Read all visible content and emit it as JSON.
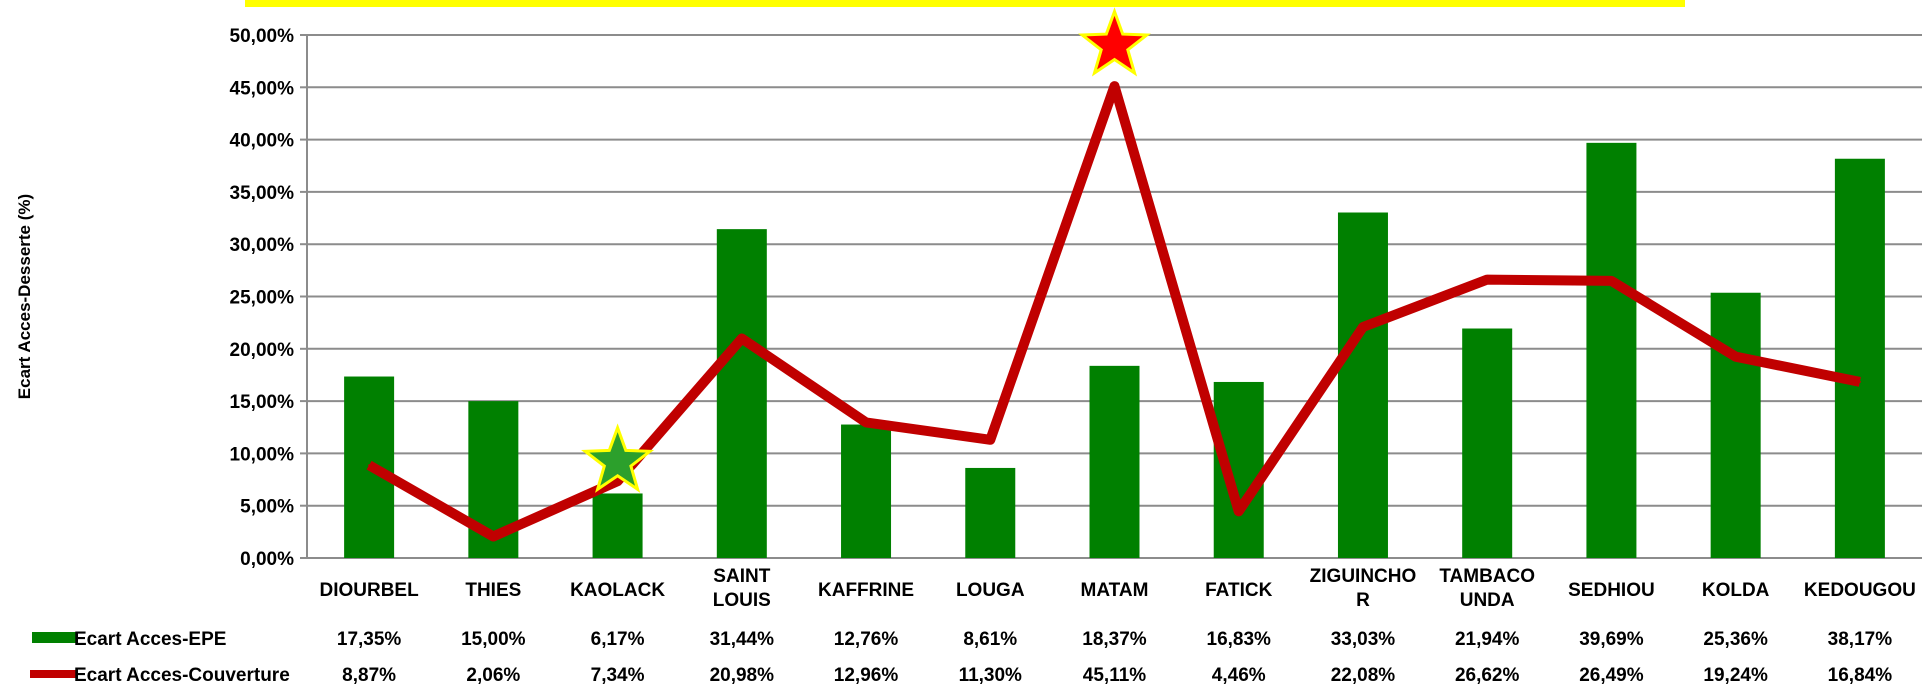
{
  "chart_data": {
    "type": "bar",
    "ylabel": "Ecart Acces-Desserte (%)",
    "ylim": [
      0,
      50
    ],
    "yticks": [
      "0,00%",
      "5,00%",
      "10,00%",
      "15,00%",
      "20,00%",
      "25,00%",
      "30,00%",
      "35,00%",
      "40,00%",
      "45,00%",
      "50,00%"
    ],
    "grid": true,
    "legend_position": "bottom table",
    "categories": [
      [
        "DIOURBEL"
      ],
      [
        "THIES"
      ],
      [
        "KAOLACK"
      ],
      [
        "SAINT",
        "LOUIS"
      ],
      [
        "KAFFRINE"
      ],
      [
        "LOUGA"
      ],
      [
        "MATAM"
      ],
      [
        "FATICK"
      ],
      [
        "ZIGUINCHO",
        "R"
      ],
      [
        "TAMBACO",
        "UNDA"
      ],
      [
        "SEDHIOU"
      ],
      [
        "KOLDA"
      ],
      [
        "KEDOUGOU"
      ]
    ],
    "series": [
      {
        "name": "Ecart Acces-EPE",
        "kind": "bar",
        "color": "#008000",
        "values": [
          17.35,
          15.0,
          6.17,
          31.44,
          12.76,
          8.61,
          18.37,
          16.83,
          33.03,
          21.94,
          39.69,
          25.36,
          38.17
        ],
        "labels": [
          "17,35%",
          "15,00%",
          "6,17%",
          "31,44%",
          "12,76%",
          "8,61%",
          "18,37%",
          "16,83%",
          "33,03%",
          "21,94%",
          "39,69%",
          "25,36%",
          "38,17%"
        ]
      },
      {
        "name": "Ecart Acces-Couverture",
        "kind": "line",
        "color": "#c00000",
        "values": [
          8.87,
          2.06,
          7.34,
          20.98,
          12.96,
          11.3,
          45.11,
          4.46,
          22.08,
          26.62,
          26.49,
          19.24,
          16.84
        ],
        "labels": [
          "8,87%",
          "2,06%",
          "7,34%",
          "20,98%",
          "12,96%",
          "11,30%",
          "45,11%",
          "4,46%",
          "22,08%",
          "26,62%",
          "26,49%",
          "19,24%",
          "16,84%"
        ]
      }
    ],
    "annotations": [
      {
        "shape": "star",
        "fill": "#2ca02c",
        "stroke": "#ffff00",
        "category_index": 2,
        "y": 9.2
      },
      {
        "shape": "star",
        "fill": "#ff0000",
        "stroke": "#ffff00",
        "category_index": 6,
        "y": 49.0
      }
    ],
    "top_banner_color": "#ffff00"
  }
}
